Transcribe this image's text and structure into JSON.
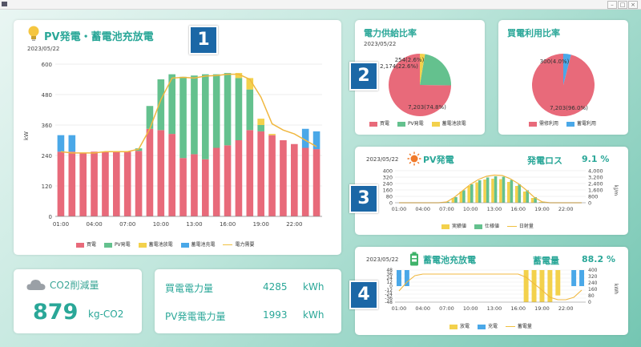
{
  "colors": {
    "buy": "#e86a7a",
    "pv": "#64c18e",
    "discharge": "#f3d14c",
    "charge": "#4aa8e8",
    "demand": "#f0b840",
    "teal": "#2aa798"
  },
  "main": {
    "title": "PV発電・蓄電池充放電",
    "date": "2023/05/22",
    "ylabel": "kW",
    "legend": [
      "買電",
      "PV発電",
      "蓄電池放電",
      "蓄電池充電",
      "電力需要"
    ]
  },
  "supply": {
    "title": "電力供給比率",
    "date": "2023/05/22",
    "labels": [
      "254(2.6%)",
      "2,174(22.6%)",
      "7,203(74.8%)"
    ],
    "legend": [
      "買電",
      "PV発電",
      "蓄電池放電"
    ]
  },
  "buyuse": {
    "title": "買電利用比率",
    "date": "",
    "labels": [
      "300(4.0%)",
      "7,203(96.0%)"
    ],
    "legend": [
      "需修利用",
      "蓄電利用"
    ]
  },
  "pv": {
    "date": "2023/05/22",
    "title": "PV発電",
    "loss_label": "発電ロス",
    "loss_value": "9.1 %",
    "yleft": [
      "400",
      "320",
      "240",
      "160",
      "80",
      "0"
    ],
    "yright": [
      "4,000",
      "3,200",
      "2,400",
      "1,600",
      "800",
      "0"
    ],
    "yunit": "kJ/m",
    "legend": [
      "実績値",
      "仕様値",
      "日射量"
    ]
  },
  "battery": {
    "date": "2023/05/22",
    "title": "蓄電池充放電",
    "soc_label": "蓄電量",
    "soc_value": "88.2 %",
    "yleft": [
      "48",
      "36",
      "24",
      "12",
      "0",
      "-12",
      "-24",
      "-36",
      "-48"
    ],
    "yright": [
      "400",
      "320",
      "240",
      "160",
      "80",
      "0"
    ],
    "yunit": "kWh",
    "legend": [
      "放電",
      "充電",
      "蓄電量"
    ]
  },
  "co2": {
    "title": "CO2削減量",
    "value": "879",
    "unit": "kg-CO2"
  },
  "energy": {
    "buy_label": "買電電力量",
    "buy_value": "4285",
    "buy_unit": "kWh",
    "pv_label": "PV発電電力量",
    "pv_value": "1993",
    "pv_unit": "kWh"
  },
  "badges": [
    "1",
    "2",
    "3",
    "4"
  ],
  "chart_data": [
    {
      "type": "bar",
      "title": "PV発電・蓄電池充放電",
      "ylabel": "kW",
      "ylim": [
        0,
        600
      ],
      "y_ticks": [
        "0",
        "120",
        "240",
        "360",
        "480",
        "600"
      ],
      "tick_labels": [
        "01:00",
        "04:00",
        "07:00",
        "10:00",
        "13:00",
        "16:00",
        "19:00",
        "22:00"
      ],
      "x": [
        1,
        2,
        3,
        4,
        5,
        6,
        7,
        8,
        9,
        10,
        11,
        12,
        13,
        14,
        15,
        16,
        17,
        18,
        19,
        20,
        21,
        22,
        23,
        24
      ],
      "series": [
        {
          "name": "買電",
          "values": [
            255,
            255,
            250,
            255,
            255,
            255,
            255,
            258,
            345,
            340,
            325,
            230,
            245,
            225,
            270,
            280,
            300,
            340,
            335,
            320,
            300,
            285,
            270,
            265
          ]
        },
        {
          "name": "PV発電",
          "values": [
            0,
            0,
            0,
            0,
            0,
            0,
            0,
            10,
            90,
            200,
            235,
            320,
            310,
            335,
            290,
            285,
            245,
            160,
            25,
            0,
            0,
            0,
            0,
            0
          ]
        },
        {
          "name": "蓄電池放電",
          "values": [
            0,
            0,
            0,
            0,
            0,
            0,
            0,
            0,
            0,
            0,
            0,
            0,
            0,
            0,
            0,
            0,
            20,
            45,
            25,
            5,
            0,
            0,
            0,
            0
          ]
        },
        {
          "name": "蓄電池充電",
          "values": [
            65,
            65,
            0,
            0,
            0,
            0,
            0,
            0,
            0,
            0,
            0,
            0,
            0,
            0,
            0,
            0,
            0,
            0,
            0,
            0,
            0,
            0,
            75,
            70
          ]
        },
        {
          "name": "電力需要",
          "values": [
            255,
            250,
            250,
            250,
            255,
            255,
            255,
            265,
            345,
            460,
            545,
            548,
            545,
            553,
            555,
            560,
            560,
            540,
            470,
            365,
            340,
            325,
            300,
            275
          ]
        }
      ]
    },
    {
      "type": "pie",
      "title": "電力供給比率",
      "categories": [
        "買電",
        "PV発電",
        "蓄電池放電"
      ],
      "values": [
        7203,
        2174,
        254
      ]
    },
    {
      "type": "pie",
      "title": "買電利用比率",
      "categories": [
        "需修利用",
        "蓄電利用"
      ],
      "values": [
        7203,
        300
      ]
    },
    {
      "type": "bar",
      "title": "PV発電",
      "ylim": [
        0,
        400
      ],
      "y2lim": [
        0,
        4000
      ],
      "tick_labels": [
        "01:00",
        "04:00",
        "07:00",
        "10:00",
        "13:00",
        "16:00",
        "19:00",
        "22:00"
      ],
      "x": [
        1,
        2,
        3,
        4,
        5,
        6,
        7,
        8,
        9,
        10,
        11,
        12,
        13,
        14,
        15,
        16,
        17,
        18,
        19,
        20,
        21,
        22,
        23,
        24
      ],
      "series": [
        {
          "name": "実績値",
          "values": [
            0,
            0,
            0,
            0,
            0,
            0,
            10,
            60,
            140,
            210,
            255,
            290,
            300,
            295,
            260,
            210,
            140,
            60,
            10,
            0,
            0,
            0,
            0,
            0
          ]
        },
        {
          "name": "仕様値",
          "values": [
            0,
            0,
            0,
            0,
            0,
            0,
            12,
            70,
            155,
            230,
            280,
            315,
            330,
            325,
            285,
            230,
            155,
            70,
            12,
            0,
            0,
            0,
            0,
            0
          ]
        },
        {
          "name": "日射量",
          "values": [
            0,
            0,
            0,
            0,
            0,
            0,
            100,
            700,
            1500,
            2300,
            2900,
            3300,
            3450,
            3400,
            3000,
            2400,
            1600,
            700,
            120,
            0,
            0,
            0,
            0,
            0
          ]
        }
      ]
    },
    {
      "type": "bar",
      "title": "蓄電池充放電",
      "ylim": [
        -48,
        48
      ],
      "y2lim": [
        0,
        400
      ],
      "tick_labels": [
        "01:00",
        "04:00",
        "07:00",
        "10:00",
        "13:00",
        "16:00",
        "19:00",
        "22:00"
      ],
      "x": [
        1,
        2,
        3,
        4,
        5,
        6,
        7,
        8,
        9,
        10,
        11,
        12,
        13,
        14,
        15,
        16,
        17,
        18,
        19,
        20,
        21,
        22,
        23,
        24
      ],
      "series": [
        {
          "name": "放電",
          "values": [
            0,
            0,
            0,
            0,
            0,
            0,
            0,
            0,
            0,
            0,
            0,
            0,
            0,
            0,
            0,
            0,
            -48,
            -48,
            -48,
            -48,
            -28,
            0,
            0,
            0
          ]
        },
        {
          "name": "充電",
          "values": [
            48,
            48,
            0,
            0,
            0,
            0,
            0,
            0,
            0,
            0,
            0,
            0,
            0,
            0,
            0,
            0,
            0,
            0,
            0,
            0,
            0,
            0,
            48,
            48
          ]
        },
        {
          "name": "蓄電量",
          "values": [
            140,
            250,
            330,
            350,
            350,
            350,
            350,
            350,
            350,
            350,
            350,
            350,
            350,
            350,
            350,
            350,
            310,
            230,
            150,
            60,
            30,
            30,
            60,
            150
          ]
        }
      ]
    }
  ]
}
